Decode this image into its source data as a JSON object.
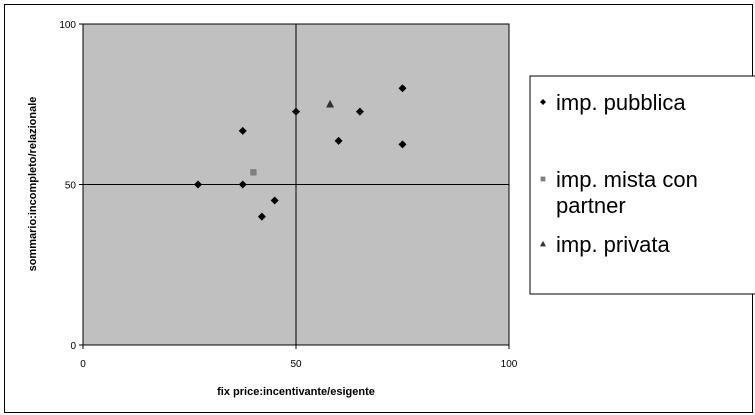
{
  "chart_data": {
    "type": "scatter",
    "title": "",
    "xlabel": "fix price:incentivante/esigente",
    "ylabel": "sommario:incompleto/relazionale",
    "xlim": [
      0,
      100
    ],
    "ylim": [
      0,
      100
    ],
    "x_ticks": [
      "0",
      "50",
      "100"
    ],
    "y_ticks": [
      "0",
      "50",
      "100"
    ],
    "plot_background": "#c0c0c0",
    "grid": false,
    "quadrant_lines": {
      "x": 50,
      "y": 50
    },
    "legend_position": "right",
    "series": [
      {
        "name": "imp. pubblica",
        "marker": "diamond",
        "color": "#000000",
        "points": [
          {
            "x": 27,
            "y": 50
          },
          {
            "x": 37.5,
            "y": 66.7
          },
          {
            "x": 37.5,
            "y": 50
          },
          {
            "x": 42,
            "y": 40
          },
          {
            "x": 45,
            "y": 45
          },
          {
            "x": 50,
            "y": 72.7
          },
          {
            "x": 60,
            "y": 63.6
          },
          {
            "x": 65,
            "y": 72.7
          },
          {
            "x": 75,
            "y": 80
          },
          {
            "x": 75,
            "y": 62.5
          }
        ]
      },
      {
        "name": "imp. mista con partner",
        "legend_lines": [
          "imp. mista con",
          "partner"
        ],
        "marker": "square",
        "color": "#808080",
        "points": [
          {
            "x": 40,
            "y": 53.8
          }
        ]
      },
      {
        "name": "imp. privata",
        "marker": "triangle",
        "color": "#333333",
        "points": [
          {
            "x": 58,
            "y": 75
          }
        ]
      }
    ]
  }
}
